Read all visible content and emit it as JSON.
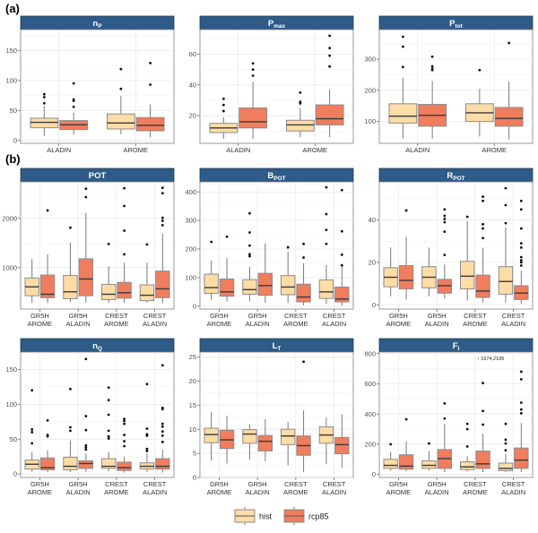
{
  "colors": {
    "hist": "#fddca6",
    "rcp85": "#ef7d5e",
    "strip": "#2e5b87",
    "box_border": "#8c8c8c"
  },
  "legend": {
    "position": "bottom",
    "items": [
      {
        "key": "hist",
        "label": "hist"
      },
      {
        "key": "rcp85",
        "label": "rcp85"
      }
    ]
  },
  "chart_data": [
    {
      "type": "box",
      "section": "(a)",
      "title": "n",
      "title_sub": "P",
      "ylim": [
        -5,
        185
      ],
      "yticks": [
        0,
        50,
        100,
        150
      ],
      "categories": [
        [
          "ALADIN"
        ],
        [
          "AROME"
        ]
      ],
      "series": {
        "hist": [
          {
            "min": 7,
            "q1": 21,
            "median": 30,
            "q3": 37,
            "max": 57,
            "outliers": [
              62,
              72,
              77
            ]
          },
          {
            "min": 10,
            "q1": 19,
            "median": 29,
            "q3": 44,
            "max": 74,
            "outliers": [
              86,
              119
            ]
          }
        ],
        "rcp85": [
          {
            "min": 9,
            "q1": 18,
            "median": 26,
            "q3": 33,
            "max": 46,
            "outliers": [
              56,
              66,
              68,
              95
            ]
          },
          {
            "min": 5,
            "q1": 16,
            "median": 25,
            "q3": 38,
            "max": 60,
            "outliers": [
              93,
              129
            ]
          }
        ]
      }
    },
    {
      "type": "box",
      "section": "",
      "title": "P",
      "title_sub": "max",
      "ylim": [
        2,
        76
      ],
      "yticks": [
        20,
        40,
        60
      ],
      "categories": [
        [
          "ALADIN"
        ],
        [
          "AROME"
        ]
      ],
      "series": {
        "hist": [
          {
            "min": 5,
            "q1": 9,
            "median": 12,
            "q3": 15,
            "max": 19,
            "outliers": [
              23,
              27,
              31
            ]
          },
          {
            "min": 6,
            "q1": 10,
            "median": 14,
            "q3": 17,
            "max": 25,
            "outliers": [
              28,
              29,
              35
            ]
          }
        ],
        "rcp85": [
          {
            "min": 5,
            "q1": 12,
            "median": 16,
            "q3": 25,
            "max": 42,
            "outliers": [
              46,
              50,
              54
            ]
          },
          {
            "min": 6,
            "q1": 14,
            "median": 18,
            "q3": 27,
            "max": 37,
            "outliers": [
              52,
              59,
              64,
              72
            ]
          }
        ]
      }
    },
    {
      "type": "box",
      "section": "",
      "title": "P",
      "title_sub": "tot",
      "ylim": [
        30,
        395
      ],
      "yticks": [
        100,
        200,
        300
      ],
      "categories": [
        [
          "ALADIN"
        ],
        [
          "AROME"
        ]
      ],
      "series": {
        "hist": [
          {
            "min": 45,
            "q1": 95,
            "median": 117,
            "q3": 157,
            "max": 240,
            "outliers": [
              275,
              340,
              372
            ]
          },
          {
            "min": 52,
            "q1": 100,
            "median": 128,
            "q3": 157,
            "max": 205,
            "outliers": [
              265
            ]
          }
        ],
        "rcp85": [
          {
            "min": 45,
            "q1": 85,
            "median": 120,
            "q3": 155,
            "max": 230,
            "outliers": [
              265,
              270,
              277,
              308
            ]
          },
          {
            "min": 42,
            "q1": 85,
            "median": 110,
            "q3": 145,
            "max": 228,
            "outliers": [
              352
            ]
          }
        ]
      }
    },
    {
      "type": "box",
      "section": "(b)",
      "title": "POT",
      "title_sub": "",
      "ylim": [
        160,
        2740
      ],
      "yticks": [
        1000,
        2000
      ],
      "categories": [
        [
          "GR5H",
          "AROME"
        ],
        [
          "GR5H",
          "ALADIN"
        ],
        [
          "CREST",
          "AROME"
        ],
        [
          "CREST",
          "ALADIN"
        ]
      ],
      "series": {
        "hist": [
          {
            "min": 290,
            "q1": 430,
            "median": 610,
            "q3": 790,
            "max": 1170,
            "outliers": []
          },
          {
            "min": 300,
            "q1": 370,
            "median": 510,
            "q3": 840,
            "max": 1510,
            "outliers": [
              1810
            ]
          },
          {
            "min": 290,
            "q1": 350,
            "median": 460,
            "q3": 660,
            "max": 1030,
            "outliers": [
              1480
            ]
          },
          {
            "min": 290,
            "q1": 330,
            "median": 440,
            "q3": 650,
            "max": 1100,
            "outliers": [
              1470
            ]
          }
        ],
        "rcp85": [
          {
            "min": 280,
            "q1": 390,
            "median": 460,
            "q3": 850,
            "max": 1270,
            "outliers": [
              2160
            ]
          },
          {
            "min": 290,
            "q1": 430,
            "median": 770,
            "q3": 1180,
            "max": 2110,
            "outliers": [
              2430,
              2600
            ]
          },
          {
            "min": 290,
            "q1": 380,
            "median": 490,
            "q3": 700,
            "max": 1100,
            "outliers": [
              1270,
              1750,
              2250,
              2610
            ]
          },
          {
            "min": 280,
            "q1": 390,
            "median": 570,
            "q3": 930,
            "max": 1690,
            "outliers": [
              1860,
              1950,
              2010,
              2510,
              2620
            ]
          }
        ]
      }
    },
    {
      "type": "box",
      "section": "",
      "title": "B",
      "title_sub": "POT",
      "ylim": [
        -10,
        435
      ],
      "yticks": [
        0,
        100,
        200,
        300,
        400
      ],
      "categories": [
        [
          "GR5H",
          "AROME"
        ],
        [
          "GR5H",
          "ALADIN"
        ],
        [
          "CREST",
          "AROME"
        ],
        [
          "CREST",
          "ALADIN"
        ]
      ],
      "series": {
        "hist": [
          {
            "min": 22,
            "q1": 45,
            "median": 65,
            "q3": 112,
            "max": 160,
            "outliers": [
              225
            ]
          },
          {
            "min": 17,
            "q1": 42,
            "median": 58,
            "q3": 93,
            "max": 138,
            "outliers": [
              175,
              182,
              212,
              258,
              325
            ]
          },
          {
            "min": 12,
            "q1": 40,
            "median": 67,
            "q3": 107,
            "max": 190,
            "outliers": [
              206
            ]
          },
          {
            "min": 7,
            "q1": 27,
            "median": 50,
            "q3": 92,
            "max": 144,
            "outliers": [
              218,
              267,
              322,
              416
            ]
          }
        ],
        "rcp85": [
          {
            "min": 17,
            "q1": 35,
            "median": 50,
            "q3": 95,
            "max": 168,
            "outliers": [
              243
            ]
          },
          {
            "min": 12,
            "q1": 38,
            "median": 72,
            "q3": 115,
            "max": 220,
            "outliers": []
          },
          {
            "min": 3,
            "q1": 15,
            "median": 32,
            "q3": 77,
            "max": 150,
            "outliers": [
              170,
              218
            ]
          },
          {
            "min": 2,
            "q1": 15,
            "median": 25,
            "q3": 67,
            "max": 140,
            "outliers": [
              143,
              180,
              262,
              406
            ]
          }
        ]
      }
    },
    {
      "type": "box",
      "section": "",
      "title": "R",
      "title_sub": "POT",
      "ylim": [
        -2,
        58
      ],
      "yticks": [
        0,
        20,
        40
      ],
      "categories": [
        [
          "GR5H",
          "AROME"
        ],
        [
          "GR5H",
          "ALADIN"
        ],
        [
          "CREST",
          "AROME"
        ],
        [
          "CREST",
          "ALADIN"
        ]
      ],
      "series": {
        "hist": [
          {
            "min": 4,
            "q1": 8.5,
            "median": 13,
            "q3": 17.5,
            "max": 27,
            "outliers": []
          },
          {
            "min": 4,
            "q1": 8,
            "median": 13,
            "q3": 18,
            "max": 27,
            "outliers": []
          },
          {
            "min": 2,
            "q1": 7.5,
            "median": 13.5,
            "q3": 20.5,
            "max": 39.5,
            "outliers": [
              41.5
            ]
          },
          {
            "min": 1,
            "q1": 5,
            "median": 11,
            "q3": 18,
            "max": 36.5,
            "outliers": [
              38.5,
              47,
              55
            ]
          }
        ],
        "rcp85": [
          {
            "min": 2.5,
            "q1": 7.5,
            "median": 11.5,
            "q3": 18.5,
            "max": 32,
            "outliers": [
              44.5
            ]
          },
          {
            "min": 3,
            "q1": 5.5,
            "median": 9,
            "q3": 12,
            "max": 19,
            "outliers": [
              23.5,
              34.5,
              39,
              40.5,
              42,
              45
            ]
          },
          {
            "min": 1,
            "q1": 3.5,
            "median": 6.5,
            "q3": 14,
            "max": 27,
            "outliers": [
              31.5,
              36,
              38,
              49,
              51
            ]
          },
          {
            "min": 0.5,
            "q1": 2.5,
            "median": 5.5,
            "q3": 9,
            "max": 16,
            "outliers": [
              18.5,
              20,
              21,
              22.5,
              27,
              29,
              36,
              45,
              49
            ]
          }
        ]
      }
    },
    {
      "type": "box",
      "section": "",
      "title": "n",
      "title_sub": "Q",
      "ylim": [
        -5,
        175
      ],
      "yticks": [
        0,
        50,
        100,
        150
      ],
      "categories": [
        [
          "GR5H",
          "AROME"
        ],
        [
          "GR5H",
          "ALADIN"
        ],
        [
          "CREST",
          "AROME"
        ],
        [
          "CREST",
          "ALADIN"
        ]
      ],
      "series": {
        "hist": [
          {
            "min": 3,
            "q1": 7,
            "median": 14,
            "q3": 20,
            "max": 31,
            "outliers": [
              44,
              60,
              64,
              120
            ]
          },
          {
            "min": 3,
            "q1": 6,
            "median": 11,
            "q3": 24,
            "max": 48,
            "outliers": [
              62,
              67,
              122
            ]
          },
          {
            "min": 4,
            "q1": 8,
            "median": 11,
            "q3": 22,
            "max": 32,
            "outliers": [
              51,
              54,
              62,
              85,
              106,
              124
            ]
          },
          {
            "min": 3,
            "q1": 7,
            "median": 11,
            "q3": 16,
            "max": 29,
            "outliers": [
              33,
              36,
              55,
              57,
              65,
              129
            ]
          }
        ],
        "rcp85": [
          {
            "min": 3,
            "q1": 6,
            "median": 9,
            "q3": 23,
            "max": 34,
            "outliers": [
              54,
              56,
              77
            ]
          },
          {
            "min": 3,
            "q1": 8,
            "median": 15,
            "q3": 19,
            "max": 29,
            "outliers": [
              35,
              38,
              41,
              63,
              83,
              165
            ]
          },
          {
            "min": 2,
            "q1": 5,
            "median": 9,
            "q3": 17,
            "max": 25,
            "outliers": [
              40,
              47,
              56,
              72,
              76,
              79
            ]
          },
          {
            "min": 2,
            "q1": 7,
            "median": 11,
            "q3": 22,
            "max": 35,
            "outliers": [
              46,
              55,
              61,
              68,
              72,
              93,
              95,
              156
            ]
          }
        ]
      }
    },
    {
      "type": "box",
      "section": "",
      "title": "L",
      "title_sub": "T",
      "ylim": [
        0,
        26
      ],
      "yticks": [
        0,
        5,
        10,
        15,
        20,
        25
      ],
      "categories": [
        [
          "GR5H",
          "AROME"
        ],
        [
          "GR5H",
          "ALADIN"
        ],
        [
          "CREST",
          "AROME"
        ],
        [
          "CREST",
          "ALADIN"
        ]
      ],
      "series": {
        "hist": [
          {
            "min": 3.5,
            "q1": 7.2,
            "median": 8.9,
            "q3": 10.2,
            "max": 13.6,
            "outliers": []
          },
          {
            "min": 3.7,
            "q1": 7.1,
            "median": 9,
            "q3": 9.9,
            "max": 11,
            "outliers": []
          },
          {
            "min": 2.5,
            "q1": 6.8,
            "median": 8.6,
            "q3": 10,
            "max": 11.5,
            "outliers": []
          },
          {
            "min": 2.8,
            "q1": 7.1,
            "median": 8.8,
            "q3": 10.5,
            "max": 12.4,
            "outliers": []
          }
        ],
        "rcp85": [
          {
            "min": 2.9,
            "q1": 6,
            "median": 7.8,
            "q3": 9.8,
            "max": 12.8,
            "outliers": []
          },
          {
            "min": 3.4,
            "q1": 5.5,
            "median": 7.5,
            "q3": 8.7,
            "max": 12.1,
            "outliers": []
          },
          {
            "min": 1.1,
            "q1": 4.6,
            "median": 6.6,
            "q3": 8.6,
            "max": 13.9,
            "outliers": [
              24
            ]
          },
          {
            "min": 2,
            "q1": 4.9,
            "median": 6.8,
            "q3": 8.3,
            "max": 13.1,
            "outliers": []
          }
        ]
      }
    },
    {
      "type": "box",
      "section": "",
      "title": "F",
      "title_sub": "I",
      "ylim": [
        -20,
        810
      ],
      "yticks": [
        0,
        200,
        400,
        600,
        800
      ],
      "categories": [
        [
          "GR5H",
          "AROME"
        ],
        [
          "GR5H",
          "ALADIN"
        ],
        [
          "CREST",
          "AROME"
        ],
        [
          "CREST",
          "ALADIN"
        ]
      ],
      "annotation": "↑ 1674,2195",
      "series": {
        "hist": [
          {
            "min": 25,
            "q1": 40,
            "median": 60,
            "q3": 100,
            "max": 150,
            "outliers": [
              200
            ]
          },
          {
            "min": 25,
            "q1": 40,
            "median": 60,
            "q3": 90,
            "max": 155,
            "outliers": [
              205
            ]
          },
          {
            "min": 20,
            "q1": 32,
            "median": 50,
            "q3": 83,
            "max": 120,
            "outliers": [
              185,
              300,
              335
            ]
          },
          {
            "min": 15,
            "q1": 25,
            "median": 40,
            "q3": 75,
            "max": 135,
            "outliers": [
              160,
              205,
              230,
              335
            ]
          }
        ],
        "rcp85": [
          {
            "min": 20,
            "q1": 35,
            "median": 55,
            "q3": 130,
            "max": 220,
            "outliers": [
              365
            ]
          },
          {
            "min": 15,
            "q1": 40,
            "median": 105,
            "q3": 165,
            "max": 335,
            "outliers": [
              370,
              470
            ]
          },
          {
            "min": 15,
            "q1": 40,
            "median": 70,
            "q3": 155,
            "max": 270,
            "outliers": [
              330,
              420,
              605
            ]
          },
          {
            "min": 15,
            "q1": 40,
            "median": 95,
            "q3": 175,
            "max": 340,
            "outliers": [
              405,
              430,
              475,
              630,
              680
            ]
          }
        ]
      }
    }
  ]
}
